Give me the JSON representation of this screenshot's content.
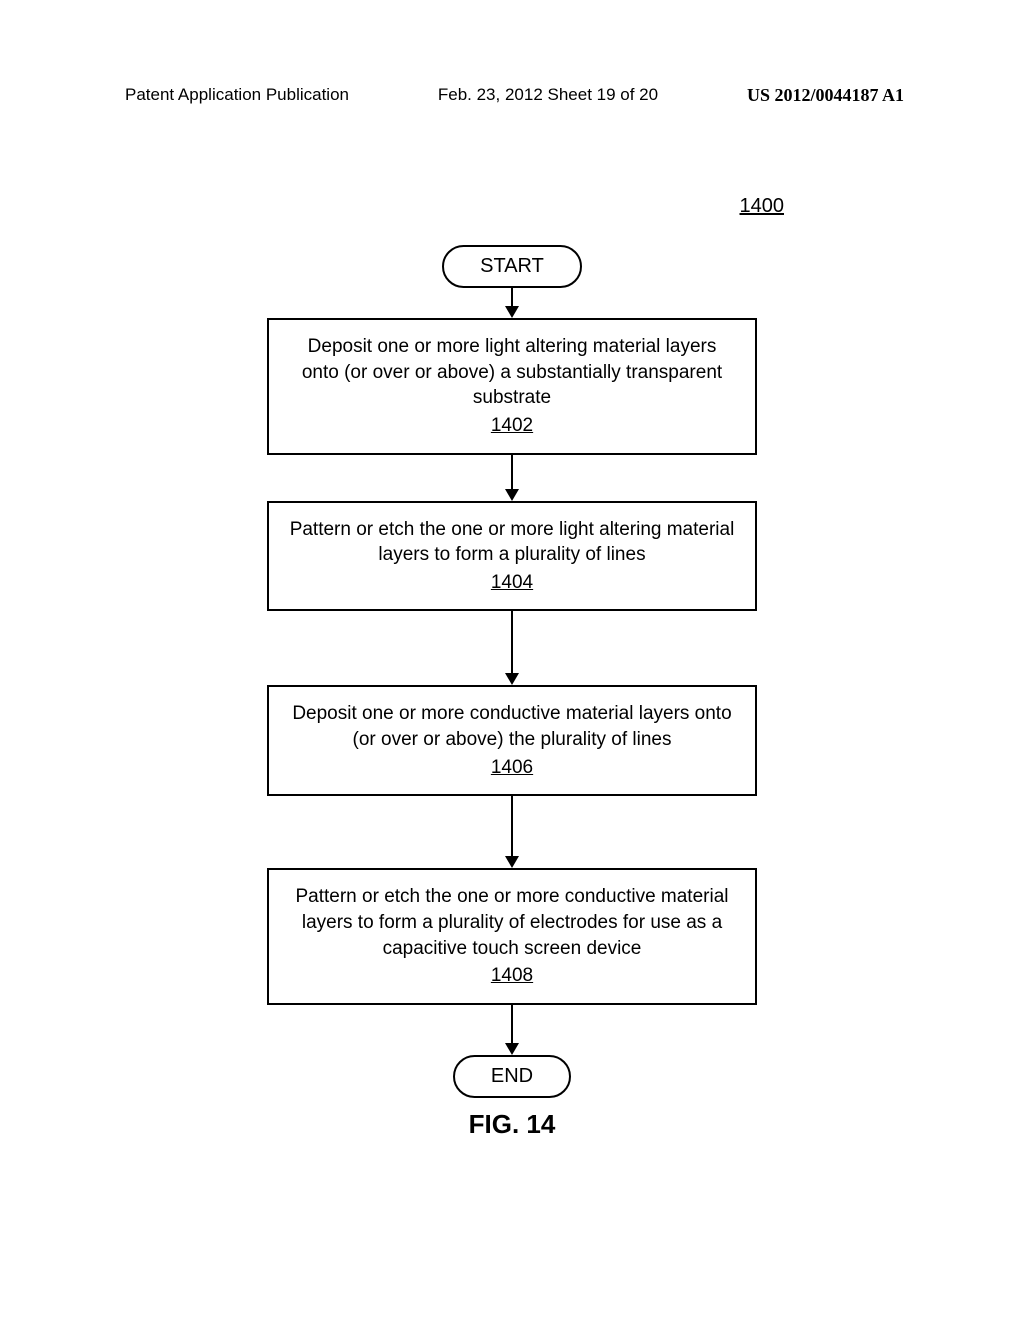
{
  "header": {
    "left": "Patent Application Publication",
    "center": "Feb. 23, 2012  Sheet 19 of 20",
    "right": "US 2012/0044187 A1"
  },
  "figure_ref": "1400",
  "flowchart": {
    "type": "flowchart",
    "start_label": "START",
    "end_label": "END",
    "boxes": [
      {
        "text": "Deposit one or more light altering material layers onto (or over or above) a substantially transparent substrate",
        "ref": "1402"
      },
      {
        "text": "Pattern or etch the one or more light altering material layers to form a plurality of lines",
        "ref": "1404"
      },
      {
        "text": "Deposit one or more conductive material layers onto (or over or above) the plurality of lines",
        "ref": "1406"
      },
      {
        "text": "Pattern or etch the one or more conductive material layers to form a plurality of electrodes for use as a capacitive touch screen device",
        "ref": "1408"
      }
    ],
    "arrow_heights": [
      18,
      34,
      62,
      60,
      38
    ],
    "colors": {
      "border": "#000000",
      "background": "#ffffff",
      "text": "#000000"
    }
  },
  "caption": "FIG. 14"
}
